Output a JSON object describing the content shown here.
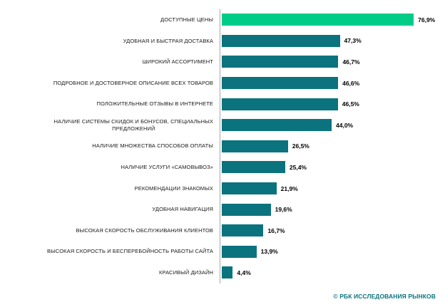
{
  "chart_data": {
    "type": "bar",
    "orientation": "horizontal",
    "title": "",
    "xlabel": "",
    "ylabel": "",
    "xlim": [
      0,
      88
    ],
    "grid": false,
    "legend": false,
    "categories": [
      "ДОСТУПНЫЕ ЦЕНЫ",
      "УДОБНАЯ И БЫСТРАЯ ДОСТАВКА",
      "ШИРОКИЙ АССОРТИМЕНТ",
      "ПОДРОБНОЕ И ДОСТОВЕРНОЕ ОПИСАНИЕ ВСЕХ ТОВАРОВ",
      "ПОЛОЖИТЕЛЬНЫЕ ОТЗЫВЫ В ИНТЕРНЕТЕ",
      "НАЛИЧИЕ СИСТЕМЫ СКИДОК И БОНУСОВ, СПЕЦИАЛЬНЫХ\nПРЕДЛОЖЕНИЙ",
      "НАЛИЧИЕ МНОЖЕСТВА СПОСОБОВ ОПЛАТЫ",
      "НАЛИЧИЕ УСЛУГИ «САМОВЫВОЗ»",
      "РЕКОМЕНДАЦИИ ЗНАКОМЫХ",
      "УДОБНАЯ НАВИГАЦИЯ",
      "ВЫСОКАЯ СКОРОСТЬ ОБСЛУЖИВАНИЯ КЛИЕНТОВ",
      "ВЫСОКАЯ СКОРОСТЬ И БЕСПЕРЕБОЙНОСТЬ РАБОТЫ САЙТА",
      "КРАСИВЫЙ ДИЗАЙН"
    ],
    "values": [
      76.9,
      47.3,
      46.7,
      46.6,
      46.5,
      44.0,
      26.5,
      25.4,
      21.9,
      19.6,
      16.7,
      13.9,
      4.4
    ],
    "value_labels": [
      "76,9%",
      "47,3%",
      "46,7%",
      "46,6%",
      "46,5%",
      "44,0%",
      "26,5%",
      "25,4%",
      "21,9%",
      "19,6%",
      "16,7%",
      "13,9%",
      "4,4%"
    ],
    "highlight_index": 0,
    "colors": {
      "highlight_bar": "#00cc88",
      "default_bar": "#0b737e",
      "axis_line": "#a6a6a6",
      "value_text": "#000000",
      "category_text": "#1a1a1a"
    }
  },
  "footer": {
    "source_label": "© РБК ИССЛЕДОВАНИЯ РЫНКОВ"
  }
}
